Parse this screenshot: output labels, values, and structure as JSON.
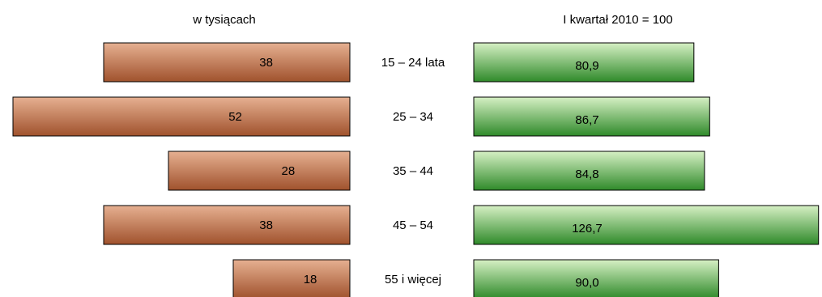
{
  "chart_data": {
    "type": "bar",
    "categories": [
      "15 – 24 lata",
      "25 – 34",
      "35 – 44",
      "45 – 54",
      "55 i więcej"
    ],
    "series": [
      {
        "values": [
          38,
          52,
          28,
          38,
          18
        ],
        "labels": [
          "38",
          "52",
          "28",
          "38",
          "18"
        ],
        "direction": "left"
      },
      {
        "values": [
          80.9,
          86.7,
          84.8,
          126.7,
          90.0
        ],
        "labels": [
          "80,9",
          "86,7",
          "84,8",
          "126,7",
          "90,0"
        ],
        "direction": "right"
      }
    ],
    "left_title": "w tysiącach",
    "right_title": "I kwartał 2010 = 100",
    "legend": "none",
    "grid": false,
    "colors": {
      "left_bar_light": "#e6b091",
      "left_bar_dark": "#a0522d",
      "right_bar_light": "#d6f0c4",
      "right_bar_dark": "#2f8a2a",
      "bar_border": "#000000",
      "text": "#000000"
    }
  }
}
